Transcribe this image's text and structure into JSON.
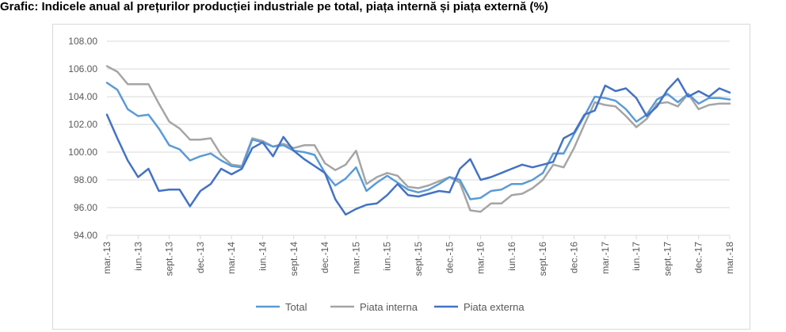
{
  "chart_data": {
    "type": "line",
    "title": "Grafic: Indicele anual al prețurilor producției industriale pe total, piața internă și piața externă (%)",
    "xlabel": "",
    "ylabel": "",
    "ylim": [
      94,
      108
    ],
    "yticks": [
      "94.00",
      "96.00",
      "98.00",
      "100.00",
      "102.00",
      "104.00",
      "106.00",
      "108.00"
    ],
    "ytick_values": [
      94,
      96,
      98,
      100,
      102,
      104,
      106,
      108
    ],
    "xticks": [
      "mar.-13",
      "iun.-13",
      "sept.-13",
      "dec.-13",
      "mar.-14",
      "iun.-14",
      "sept.-14",
      "dec.-14",
      "mar.-15",
      "iun.-15",
      "sept.-15",
      "dec.-15",
      "mar.-16",
      "iun.-16",
      "sept.-16",
      "dec.-16",
      "mar.-17",
      "iun.-17",
      "sept.-17",
      "dec.-17",
      "mar.-18"
    ],
    "xtick_index": [
      0,
      3,
      6,
      9,
      12,
      15,
      18,
      21,
      24,
      27,
      30,
      33,
      36,
      39,
      42,
      45,
      48,
      51,
      54,
      57,
      60
    ],
    "n_points": 61,
    "legend_position": "bottom",
    "grid": true,
    "series": [
      {
        "name": "Total",
        "color": "#5b9bd5",
        "values": [
          105.0,
          104.5,
          103.1,
          102.6,
          102.7,
          101.7,
          100.5,
          100.2,
          99.4,
          99.7,
          99.9,
          99.4,
          99.0,
          98.9,
          100.9,
          100.7,
          100.4,
          100.5,
          100.1,
          100.0,
          99.8,
          98.5,
          97.6,
          98.1,
          98.9,
          97.2,
          97.8,
          98.3,
          97.8,
          97.3,
          97.1,
          97.3,
          97.7,
          98.2,
          98.0,
          96.6,
          96.7,
          97.2,
          97.3,
          97.7,
          97.7,
          98.0,
          98.5,
          99.9,
          99.9,
          101.3,
          102.6,
          104.0,
          103.9,
          103.7,
          103.1,
          102.2,
          102.7,
          103.8,
          104.2,
          103.6,
          104.2,
          103.5,
          103.9,
          103.9,
          103.8
        ]
      },
      {
        "name": "Piata interna",
        "color": "#a5a5a5",
        "values": [
          106.2,
          105.8,
          104.9,
          104.9,
          104.9,
          103.5,
          102.2,
          101.7,
          100.9,
          100.9,
          101.0,
          99.8,
          99.1,
          99.0,
          101.0,
          100.8,
          100.4,
          100.6,
          100.3,
          100.5,
          100.5,
          99.2,
          98.7,
          99.1,
          100.1,
          97.7,
          98.2,
          98.5,
          98.3,
          97.5,
          97.4,
          97.6,
          97.9,
          98.2,
          97.8,
          95.8,
          95.7,
          96.3,
          96.3,
          96.9,
          97.0,
          97.4,
          98.0,
          99.1,
          98.9,
          100.3,
          102.0,
          103.6,
          103.4,
          103.3,
          102.6,
          101.8,
          102.4,
          103.5,
          103.6,
          103.3,
          104.2,
          103.1,
          103.4,
          103.5,
          103.5
        ]
      },
      {
        "name": "Piata externa",
        "color": "#4472c4",
        "values": [
          102.7,
          101.0,
          99.4,
          98.2,
          98.8,
          97.2,
          97.3,
          97.3,
          96.1,
          97.2,
          97.7,
          98.8,
          98.4,
          98.8,
          100.3,
          100.7,
          99.7,
          101.1,
          100.1,
          99.5,
          99.0,
          98.5,
          96.6,
          95.5,
          95.9,
          96.2,
          96.3,
          96.9,
          97.7,
          96.9,
          96.8,
          97.0,
          97.2,
          97.1,
          98.8,
          99.5,
          98.0,
          98.2,
          98.5,
          98.8,
          99.1,
          98.9,
          99.1,
          99.3,
          101.0,
          101.4,
          102.7,
          103.0,
          104.8,
          104.4,
          104.6,
          103.9,
          102.6,
          103.3,
          104.5,
          105.3,
          104.0,
          104.4,
          104.0,
          104.6,
          104.3
        ]
      }
    ]
  }
}
